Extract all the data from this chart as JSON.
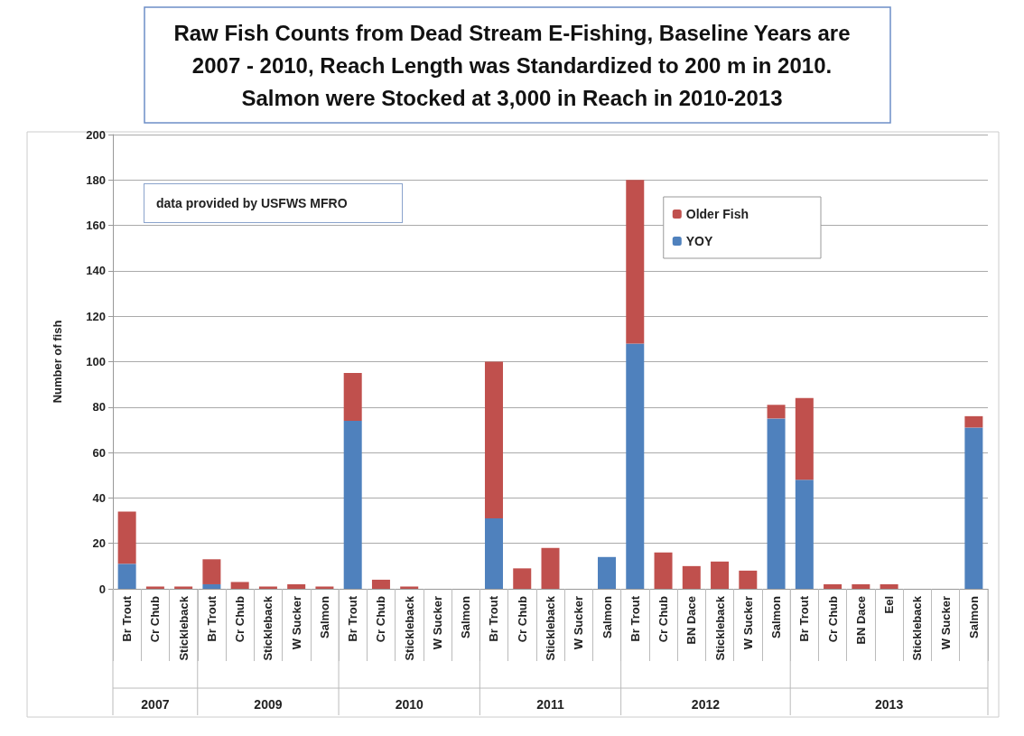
{
  "chart_data": {
    "type": "bar",
    "title": "Raw Fish Counts from Dead Stream E-Fishing, Baseline Years are\n2007 - 2010, Reach Length was Standardized to 200 m in 2010.\nSalmon were Stocked at 3,000 in Reach in 2010-2013",
    "ylabel": "Number of fish",
    "categories": [
      "Br Trout",
      "Cr Chub",
      "Stickleback",
      "Br Trout",
      "Cr Chub",
      "Stickleback",
      "W Sucker",
      "Salmon",
      "Br Trout",
      "Cr Chub",
      "Stickleback",
      "W Sucker",
      "Salmon",
      "Br Trout",
      "Cr Chub",
      "Stickleback",
      "W Sucker",
      "Salmon",
      "Br Trout",
      "Cr Chub",
      "BN Dace",
      "Stickleback",
      "W Sucker",
      "Salmon",
      "Br Trout",
      "Cr Chub",
      "BN Dace",
      "Eel",
      "Stickleback",
      "W Sucker",
      "Salmon"
    ],
    "series": [
      {
        "name": "YOY",
        "color": "#4f81bd",
        "values": [
          11,
          0,
          0,
          2,
          0,
          0,
          0,
          0,
          74,
          0,
          0,
          0,
          0,
          31,
          0,
          0,
          0,
          14,
          108,
          0,
          0,
          0,
          0,
          75,
          48,
          0,
          0,
          0,
          0,
          0,
          71
        ]
      },
      {
        "name": "Older Fish",
        "color": "#c0504d",
        "values": [
          23,
          1,
          1,
          11,
          3,
          1,
          2,
          1,
          21,
          4,
          1,
          0,
          0,
          69,
          9,
          18,
          0,
          0,
          72,
          16,
          10,
          12,
          8,
          6,
          36,
          2,
          2,
          2,
          0,
          0,
          5
        ]
      }
    ],
    "stacked": true,
    "ylim": [
      0,
      200
    ],
    "yticks": [
      0,
      20,
      40,
      60,
      80,
      100,
      120,
      140,
      160,
      180,
      200
    ],
    "grid": "y",
    "legend": "top right",
    "annotations": [
      "data provided by USFWS MFRO",
      "2007",
      "2009",
      "2010",
      "2011",
      "2012",
      "2013"
    ]
  }
}
